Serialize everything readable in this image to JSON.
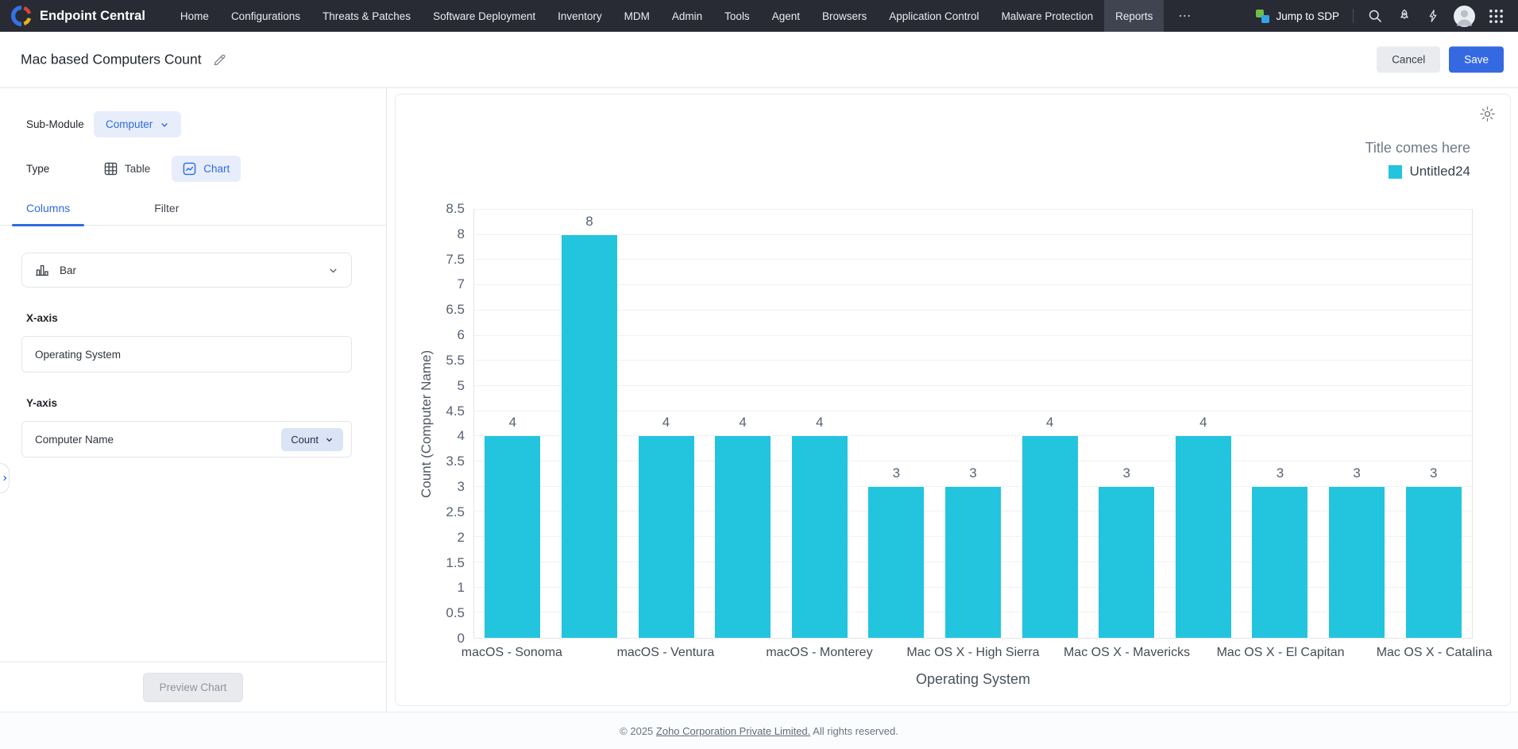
{
  "topnav": {
    "brand": "Endpoint Central",
    "items": [
      "Home",
      "Configurations",
      "Threats & Patches",
      "Software Deployment",
      "Inventory",
      "MDM",
      "Admin",
      "Tools",
      "Agent",
      "Browsers",
      "Application Control",
      "Malware Protection",
      "Reports"
    ],
    "active_item": "Reports",
    "more_label": "⋯",
    "jump_to_sdp_label": "Jump to SDP"
  },
  "header": {
    "title": "Mac based Computers Count",
    "cancel_label": "Cancel",
    "save_label": "Save"
  },
  "panel": {
    "sub_module_label": "Sub-Module",
    "sub_module_value": "Computer",
    "type_label": "Type",
    "type_table_label": "Table",
    "type_chart_label": "Chart",
    "tab_columns": "Columns",
    "tab_filter": "Filter",
    "active_tab": "Columns",
    "chart_type_value": "Bar",
    "x_axis_label": "X-axis",
    "x_axis_value": "Operating System",
    "y_axis_label": "Y-axis",
    "y_axis_value": "Computer Name",
    "y_axis_aggregate": "Count",
    "preview_button_label": "Preview Chart"
  },
  "chart_panel": {
    "title": "Title comes here",
    "legend_label": "Untitled24"
  },
  "chart_data": {
    "type": "bar",
    "bar_count": 13,
    "series": [
      {
        "name": "Untitled24",
        "color": "#23c4de",
        "values": [
          4,
          8,
          4,
          4,
          4,
          3,
          3,
          4,
          3,
          4,
          3,
          3,
          3
        ]
      }
    ],
    "x_tick_labels_visible": [
      "macOS - Sonoma",
      "macOS - Ventura",
      "macOS - Monterey",
      "Mac OS X - High Sierra",
      "Mac OS X - Mavericks",
      "Mac OS X - El Capitan",
      "Mac OS X - Catalina"
    ],
    "visible_label_positions": [
      0,
      2,
      4,
      6,
      8,
      10,
      12
    ],
    "xlabel": "Operating System",
    "ylabel": "Count (Computer Name)",
    "ylim": [
      0,
      8.5
    ],
    "ytick_step": 0.5,
    "grid": true,
    "legend_position": "top-right",
    "value_labels": true
  },
  "footer": {
    "prefix": "© 2025 ",
    "link": "Zoho Corporation Private Limited.",
    "suffix": " All rights reserved."
  },
  "colors": {
    "accent_blue": "#2e6be5",
    "save_blue": "#3569e2",
    "bar_cyan": "#23c4de",
    "nav_bg": "#282b34"
  }
}
